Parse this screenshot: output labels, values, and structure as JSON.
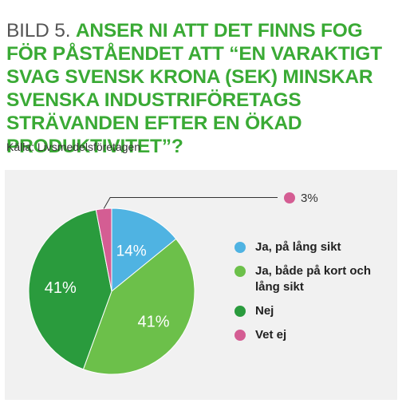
{
  "header": {
    "prefix": "BILD 5.",
    "title": "ANSER NI ATT DET FINNS FOG FÖR PÅSTÅENDET ATT “EN VARAKTIGT SVAG SVENSK KRONA (SEK) MINSKAR SVENSKA INDUSTRIFÖRETAGS STRÄVANDEN EFTER EN ÖKAD PRODUKTIVITET”?",
    "source": "Källa: Livsmedelsföretagen"
  },
  "chart_data": {
    "type": "pie",
    "title": "ANSER NI ATT DET FINNS FOG FÖR PÅSTÅENDET ATT “EN VARAKTIGT SVAG SVENSK KRONA (SEK) MINSKAR SVENSKA INDUSTRIFÖRETAGS STRÄVANDEN EFTER EN ÖKAD PRODUKTIVITET”?",
    "start": "12 o'clock, clockwise",
    "legend_position": "right",
    "slices": [
      {
        "label": "Ja, på lång sikt",
        "value": 14,
        "display": "14%",
        "color": "#4fb3e2"
      },
      {
        "label": "Ja, både på kort och lång sikt",
        "value": 41,
        "display": "41%",
        "color": "#6cc04a"
      },
      {
        "label": "Nej",
        "value": 41,
        "display": "41%",
        "color": "#2a9b3d"
      },
      {
        "label": "Vet ej",
        "value": 3,
        "display": "3%",
        "color": "#d45d93"
      }
    ]
  }
}
